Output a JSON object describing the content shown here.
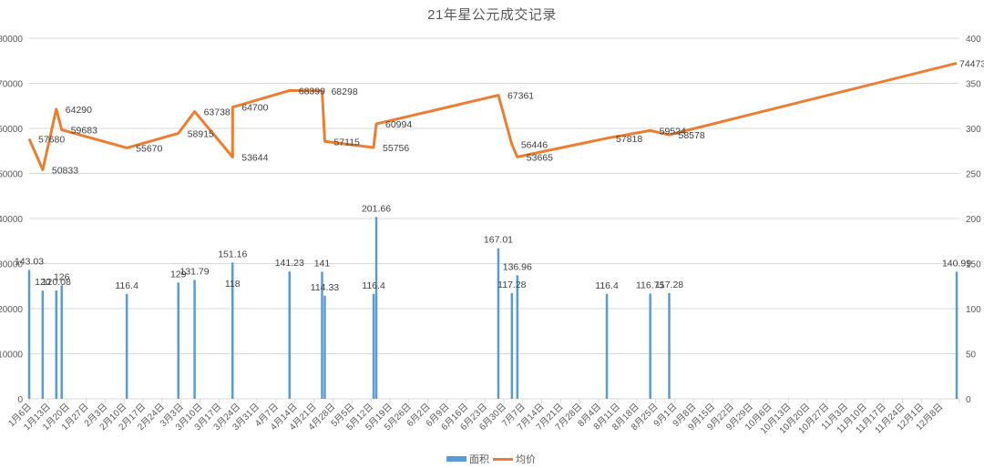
{
  "title": "21年星公元成交记录",
  "legend": {
    "items": [
      {
        "label": "面积",
        "color": "#5B9BD5"
      },
      {
        "label": "均价",
        "color": "#ED7D31"
      }
    ]
  },
  "colors": {
    "bar": "#5B9BD5",
    "line": "#ED7D31",
    "grid": "#D9D9D9",
    "axis_text": "#595959",
    "label_text": "#404040"
  },
  "chart_data": {
    "type": "bar",
    "combo": true,
    "title": "21年星公元成交记录",
    "xlabel": "",
    "ylabel": "",
    "y2label": "",
    "ylim": [
      0,
      80000
    ],
    "y2lim": [
      0,
      400
    ],
    "yticks": [
      0,
      10000,
      20000,
      30000,
      40000,
      50000,
      60000,
      70000,
      80000
    ],
    "y2ticks": [
      0,
      50,
      100,
      150,
      200,
      250,
      300,
      350,
      400
    ],
    "xticks": [
      "1月6日",
      "1月13日",
      "1月20日",
      "1月27日",
      "2月3日",
      "2月10日",
      "2月17日",
      "2月24日",
      "3月3日",
      "3月10日",
      "3月17日",
      "3月24日",
      "3月31日",
      "4月7日",
      "4月14日",
      "4月21日",
      "4月28日",
      "5月5日",
      "5月12日",
      "5月19日",
      "5月26日",
      "6月2日",
      "6月9日",
      "6月16日",
      "6月23日",
      "6月30日",
      "7月7日",
      "7月14日",
      "7月21日",
      "7月28日",
      "8月4日",
      "8月11日",
      "8月18日",
      "8月25日",
      "9月1日",
      "9月8日",
      "9月15日",
      "9月22日",
      "9月29日",
      "10月6日",
      "10月13日",
      "10月20日",
      "10月27日",
      "11月3日",
      "11月10日",
      "11月17日",
      "11月24日",
      "12月1日",
      "12月8日"
    ],
    "grid": true,
    "legend_position": "bottom",
    "x": [
      "1月6日",
      "1月11日",
      "1月16日",
      "1月18日",
      "2月11日",
      "3月2日",
      "3月8日",
      "3月22日",
      "3月22日",
      "4月12日",
      "4月24日",
      "4月25日",
      "5月13日",
      "5月14日",
      "6月28日",
      "7月3日",
      "7月5日",
      "8月7日",
      "8月23日",
      "8月30日",
      "12月14日"
    ],
    "series": [
      {
        "name": "面积",
        "type": "bar",
        "axis": "right",
        "values": [
          143.03,
          120,
          120.08,
          126,
          116.4,
          129,
          131.79,
          118,
          151.16,
          141.23,
          141,
          114.33,
          116.4,
          201.66,
          167.01,
          117.28,
          136.96,
          116.4,
          116.75,
          117.28,
          140.99
        ]
      },
      {
        "name": "均价",
        "type": "line",
        "axis": "left",
        "values": [
          57680,
          50833,
          64290,
          59683,
          55670,
          58915,
          63738,
          53644,
          64700,
          68399,
          68298,
          57115,
          55756,
          60994,
          67361,
          56446,
          53665,
          57818,
          59524,
          58578,
          74473
        ]
      }
    ]
  }
}
